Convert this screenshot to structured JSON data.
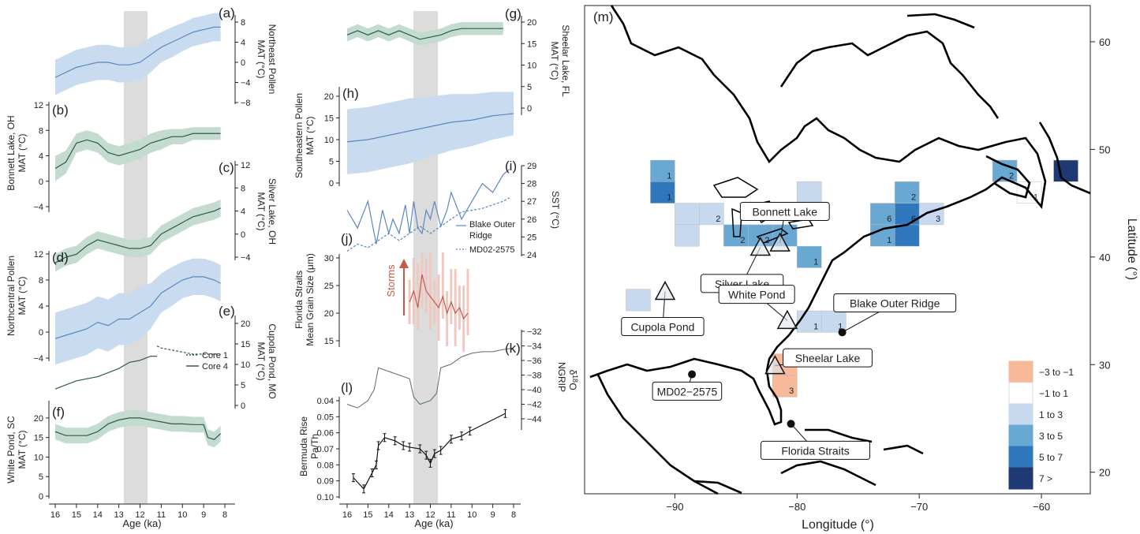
{
  "colors": {
    "blue": "#5b86c0",
    "blue_band": "#c9dcef",
    "green": "#2f5a48",
    "green_band": "#c3dccf",
    "red": "#c45a4a",
    "red_band": "#f0c8c2",
    "gray_band": "#dcdcdc",
    "ngrip": "#55705f",
    "black": "#111111"
  },
  "left_axis": {
    "xlabel": "Age (ka)",
    "ticks": [
      "16",
      "15",
      "14",
      "13",
      "12",
      "11",
      "10",
      "9",
      "8"
    ]
  },
  "mid_axis": {
    "xlabel": "Age (ka)",
    "ticks": [
      "16",
      "15",
      "14",
      "13",
      "12",
      "11",
      "10",
      "9",
      "8"
    ]
  },
  "panels": {
    "a": {
      "tag": "(a)",
      "label1": "Northeast Pollen",
      "label2": "MAT (°C)",
      "ticks": [
        "8",
        "4",
        "0",
        "−4",
        "−8"
      ]
    },
    "b": {
      "tag": "(b)",
      "label1": "Bonnett Lake, OH",
      "label2": "MAT (°C)",
      "ticks": [
        "12",
        "8",
        "4",
        "0",
        "−4"
      ]
    },
    "c": {
      "tag": "(c)",
      "label1": "Silver Lake, OH",
      "label2": "MAT (°C)",
      "ticks": [
        "12",
        "8",
        "4",
        "0",
        "−4"
      ]
    },
    "d": {
      "tag": "(d)",
      "label1": "Northcentral Pollen",
      "label2": "MAT (°C)",
      "ticks": [
        "12",
        "8",
        "4",
        "0",
        "−4"
      ]
    },
    "e": {
      "tag": "(e)",
      "label1": "Cupola Pond, MO",
      "label2": "MAT (°C)",
      "ticks": [
        "20",
        "15",
        "10",
        "5",
        "0"
      ],
      "legend": [
        "Core 1",
        "Core 4"
      ]
    },
    "f": {
      "tag": "(f)",
      "label1": "White Pond, SC",
      "label2": "MAT (°C)",
      "ticks": [
        "20",
        "15",
        "10",
        "5",
        "0"
      ]
    },
    "g": {
      "tag": "(g)",
      "label1": "Sheelar Lake, FL",
      "label2": "MAT (°C)",
      "ticks": [
        "20",
        "15",
        "10",
        "5",
        "0"
      ]
    },
    "h": {
      "tag": "(h)",
      "label1": "Southeastern Pollen",
      "label2": "MAT (°C)",
      "ticks": [
        "20",
        "15",
        "10",
        "5",
        "0"
      ]
    },
    "i": {
      "tag": "(i)",
      "label1": "SST (°C)",
      "ticks": [
        "29",
        "28",
        "27",
        "26",
        "25",
        "24"
      ],
      "legend": [
        "Blake Outer",
        "Ridge",
        "MD02-2575"
      ]
    },
    "j": {
      "tag": "(j)",
      "label1": "Florida Straits",
      "label2": "Mean Grain Size (μm)",
      "ticks": [
        "30",
        "25",
        "20",
        "15"
      ],
      "arrow": "Storms"
    },
    "k": {
      "tag": "(k)",
      "label1": "NGRIP",
      "label2": "δ",
      "label3": "18",
      "label4": "O",
      "ticks": [
        "−32",
        "−34",
        "−36",
        "−38",
        "−40",
        "−42",
        "−44"
      ]
    },
    "l": {
      "tag": "(l)",
      "label1": "Bermuda Rise",
      "label2": "Pa/Th",
      "ticks": [
        "0.04",
        "0.05",
        "0.06",
        "0.07",
        "0.08",
        "0.09",
        "0.10"
      ]
    }
  },
  "map": {
    "tag": "(m)",
    "xlabel": "Longitude (°)",
    "ylabel": "Latitude (°)",
    "xticks": [
      "−90",
      "−80",
      "−70",
      "−60"
    ],
    "yticks": [
      "60",
      "50",
      "40",
      "30",
      "20"
    ],
    "sites": [
      "Bonnett Lake",
      "Silver Lake",
      "White Pond",
      "Cupola Pond",
      "Sheelar Lake",
      "Blake Outer Ridge",
      "MD02−2575",
      "Florida Straits"
    ],
    "legend": [
      "−3 to −1",
      "−1 to 1",
      "1 to 3",
      "3 to 5",
      "5 to 7",
      "7 >"
    ],
    "legend_colors": [
      "#f7b99a",
      "#ffffff",
      "#c7d9ee",
      "#6aa8d4",
      "#2f78bd",
      "#1f3a72"
    ],
    "cell_numbers": [
      "1",
      "1",
      "2",
      "2",
      "2",
      "1",
      "1",
      "6",
      "6",
      "3",
      "1",
      "2",
      "2",
      "1",
      "1",
      "1",
      "3",
      "1"
    ]
  },
  "chart_data": [
    {
      "type": "line",
      "panel": "a",
      "title": "",
      "xlabel": "Age (ka)",
      "ylabel": "Northeast Pollen MAT (°C)",
      "xlim": [
        16,
        8
      ],
      "ylim": [
        -8,
        8
      ],
      "x": [
        16,
        15.5,
        15,
        14.5,
        14,
        13.5,
        13,
        12.5,
        12,
        11.5,
        11,
        10.5,
        10,
        9.5,
        9,
        8.5,
        8.2
      ],
      "series": [
        {
          "values": [
            -3,
            -2,
            -1,
            -0.5,
            0,
            0,
            -0.5,
            -0.5,
            0,
            1.5,
            3,
            4,
            5,
            6,
            6.5,
            7,
            7
          ],
          "band": [
            3.5,
            3.5,
            3.5,
            3.5,
            3.5,
            3.5,
            3.5,
            3.5,
            3.5,
            3.5,
            3,
            3,
            2.8,
            2.8,
            2.8,
            2.8,
            2.8
          ]
        }
      ]
    },
    {
      "type": "line",
      "panel": "b",
      "xlabel": "Age (ka)",
      "ylabel": "Bonnett Lake, OH MAT (°C)",
      "xlim": [
        16,
        8
      ],
      "ylim": [
        -4,
        12
      ],
      "x": [
        16,
        15.5,
        15,
        14.5,
        14,
        13.5,
        13,
        12.5,
        12,
        11.5,
        11,
        10.5,
        10,
        9.5,
        9,
        8.5,
        8.2
      ],
      "series": [
        {
          "values": [
            2,
            3,
            6,
            6.5,
            6,
            4.5,
            4,
            4.5,
            5,
            6,
            6.5,
            7,
            7,
            7.5,
            7.5,
            7.5,
            7.5
          ],
          "band": [
            2,
            1.8,
            1.5,
            1.5,
            1.5,
            1.5,
            1.5,
            1.5,
            1.5,
            1.5,
            1.5,
            1.2,
            1.2,
            1,
            1,
            1,
            1
          ]
        }
      ]
    },
    {
      "type": "line",
      "panel": "c",
      "xlabel": "Age (ka)",
      "ylabel": "Silver Lake, OH MAT (°C)",
      "xlim": [
        16,
        8
      ],
      "ylim": [
        -4,
        12
      ],
      "x": [
        16,
        15.5,
        15,
        14.5,
        14,
        13.5,
        13,
        12.5,
        12,
        11.5,
        11,
        10.5,
        10,
        9.5,
        9,
        8.5,
        8.2
      ],
      "series": [
        {
          "values": [
            -5,
            -4,
            -3.5,
            -2,
            -1,
            -1.5,
            -2,
            -2.5,
            -2.5,
            -2,
            0,
            1,
            2,
            3,
            3.5,
            4,
            4.5
          ],
          "band": [
            1.5,
            1.5,
            1.5,
            1.5,
            1.5,
            1.5,
            1.5,
            1.5,
            1.5,
            1.5,
            1.5,
            1.5,
            1.5,
            1.5,
            1.5,
            1.5,
            1.5
          ]
        }
      ]
    },
    {
      "type": "line",
      "panel": "d",
      "xlabel": "Age (ka)",
      "ylabel": "Northcentral Pollen MAT (°C)",
      "xlim": [
        16,
        8
      ],
      "ylim": [
        -4,
        12
      ],
      "x": [
        16,
        15.5,
        15,
        14.5,
        14,
        13.5,
        13,
        12.5,
        12,
        11.5,
        11,
        10.5,
        10,
        9.5,
        9,
        8.5,
        8.2
      ],
      "series": [
        {
          "values": [
            -1,
            -0.5,
            0,
            0.5,
            1.5,
            1,
            2,
            2,
            3,
            4,
            6,
            7,
            8,
            8.5,
            8.5,
            8,
            7.5
          ],
          "band": [
            4,
            4,
            4,
            4,
            4,
            4,
            4,
            4,
            4,
            3.5,
            3,
            3,
            2.8,
            2.8,
            2.8,
            2.8,
            2.8
          ]
        }
      ]
    },
    {
      "type": "line",
      "panel": "e",
      "xlabel": "Age (ka)",
      "ylabel": "Cupola Pond, MO MAT (°C)",
      "xlim": [
        16,
        8
      ],
      "ylim": [
        0,
        20
      ],
      "x": [
        16,
        15,
        14.5,
        14,
        13.5,
        13,
        12.5,
        12,
        11.5,
        11.2
      ],
      "series": [
        {
          "name": "Core 4",
          "values": [
            4,
            6,
            6.5,
            7,
            8,
            9,
            10.5,
            11,
            12,
            12
          ]
        },
        {
          "name": "Core 1",
          "x": [
            11.2,
            11,
            10.5,
            10,
            9.5,
            9,
            8.5,
            8.2
          ],
          "values": [
            14.5,
            14,
            13.5,
            13,
            12.5,
            12.5,
            12.5,
            12.5
          ]
        }
      ]
    },
    {
      "type": "line",
      "panel": "f",
      "xlabel": "Age (ka)",
      "ylabel": "White Pond, SC MAT (°C)",
      "xlim": [
        16,
        8
      ],
      "ylim": [
        0,
        22
      ],
      "x": [
        16,
        15.5,
        15,
        14.5,
        14,
        13.5,
        13,
        12.5,
        12,
        11.5,
        11,
        10.5,
        10,
        9.5,
        9,
        8.8,
        8.5,
        8.2
      ],
      "series": [
        {
          "values": [
            16.5,
            15.5,
            15.5,
            15.5,
            16.5,
            18.5,
            19.5,
            20,
            20,
            19.5,
            19,
            18.5,
            18.5,
            18.3,
            18.3,
            15,
            14.5,
            16
          ],
          "band": [
            2,
            2,
            2,
            2,
            2,
            2,
            2,
            2,
            2,
            2,
            2,
            2,
            2,
            2,
            2,
            2,
            2,
            2
          ]
        }
      ]
    },
    {
      "type": "line",
      "panel": "g",
      "xlabel": "Age (ka)",
      "ylabel": "Sheelar Lake, FL MAT (°C)",
      "xlim": [
        16,
        8
      ],
      "ylim": [
        0,
        22
      ],
      "x": [
        16,
        15.5,
        15,
        14.5,
        14,
        13.5,
        13,
        12.5,
        12,
        11.5,
        11,
        10.5,
        10,
        9.5,
        9,
        8.5
      ],
      "series": [
        {
          "values": [
            17,
            18,
            17,
            18,
            17,
            18,
            17,
            16,
            16.5,
            17,
            18,
            18.5,
            18.5,
            18.5,
            18.5,
            18.5
          ],
          "band": [
            1.5,
            1.5,
            1.5,
            1.5,
            1.5,
            1.5,
            1.5,
            1.5,
            1.5,
            1.5,
            1.5,
            1.5,
            1.5,
            1.5,
            1.5,
            1.5
          ]
        }
      ]
    },
    {
      "type": "line",
      "panel": "h",
      "xlabel": "Age (ka)",
      "ylabel": "Southeastern Pollen MAT (°C)",
      "xlim": [
        16,
        8
      ],
      "ylim": [
        0,
        22
      ],
      "x": [
        16,
        15,
        14,
        13,
        12,
        11,
        10,
        9,
        8
      ],
      "series": [
        {
          "values": [
            9.5,
            10,
            11,
            12,
            13,
            14,
            14.5,
            15.5,
            16
          ],
          "band": [
            7.5,
            7.5,
            7.5,
            7.5,
            7,
            6.5,
            6,
            5.5,
            5
          ]
        }
      ]
    },
    {
      "type": "line",
      "panel": "i",
      "xlabel": "Age (ka)",
      "ylabel": "SST (°C)",
      "xlim": [
        16,
        8
      ],
      "ylim": [
        24,
        29
      ],
      "series": [
        {
          "name": "Blake Outer Ridge",
          "x": [
            16,
            15.5,
            15,
            14.6,
            14.3,
            14,
            13.8,
            13.5,
            13.2,
            13,
            12.8,
            12.6,
            12.4,
            12.2,
            12,
            11.8,
            11.5,
            11.2,
            11,
            10.5,
            10,
            9.5,
            9,
            8.5,
            8.2
          ],
          "values": [
            26.5,
            25.5,
            27,
            24.6,
            26.5,
            25.2,
            26,
            25.2,
            26.8,
            25.2,
            27,
            25.5,
            25.2,
            26.5,
            26,
            27,
            25.6,
            26.5,
            27.5,
            26,
            27,
            28,
            27.5,
            28.5,
            28.8
          ]
        },
        {
          "name": "MD02-2575",
          "x": [
            16,
            15.5,
            15,
            14.5,
            14,
            13.5,
            13,
            12.5,
            12,
            11.5,
            11,
            10.5,
            10,
            9.5,
            9,
            8.5,
            8.2
          ],
          "values": [
            24.2,
            24.6,
            24.4,
            24.8,
            25.2,
            24.8,
            25.2,
            25.6,
            25.2,
            25.6,
            26,
            26.4,
            26.5,
            26.6,
            26.8,
            27,
            27.2
          ]
        }
      ]
    },
    {
      "type": "line",
      "panel": "j",
      "xlabel": "Age (ka)",
      "ylabel": "Florida Straits Mean Grain Size (μm)",
      "xlim": [
        16,
        8
      ],
      "ylim": [
        13,
        32
      ],
      "x": [
        13,
        12.8,
        12.6,
        12.4,
        12.2,
        12,
        11.8,
        11.6,
        11.4,
        11.2,
        11,
        10.8,
        10.6,
        10.4,
        10.2
      ],
      "series": [
        {
          "values": [
            22,
            24,
            21,
            27,
            24,
            23,
            22,
            21,
            23,
            20,
            22,
            20,
            21,
            19,
            20
          ]
        }
      ]
    },
    {
      "type": "line",
      "panel": "k",
      "xlabel": "Age (ka)",
      "ylabel": "NGRIP δ18O",
      "xlim": [
        16,
        8
      ],
      "ylim": [
        -44,
        -32
      ],
      "x": [
        16,
        15.5,
        15,
        14.7,
        14.5,
        14,
        13.5,
        13,
        12.8,
        12.5,
        12,
        11.7,
        11.5,
        11,
        10.5,
        10,
        9.5,
        9,
        8.5,
        8
      ],
      "series": [
        {
          "values": [
            -42,
            -42.5,
            -41.5,
            -40,
            -37,
            -37.5,
            -38,
            -38.5,
            -41,
            -42,
            -41.5,
            -40.5,
            -37,
            -36.5,
            -35.5,
            -35,
            -34.8,
            -34.8,
            -34.5,
            -34.3
          ]
        }
      ]
    },
    {
      "type": "line",
      "panel": "l",
      "xlabel": "Age (ka)",
      "ylabel": "Bermuda Rise Pa/Th",
      "xlim": [
        16,
        8
      ],
      "ylim": [
        0.1,
        0.04
      ],
      "x": [
        15.7,
        15.2,
        14.8,
        14.6,
        14.5,
        14.2,
        13.7,
        13.3,
        13,
        12.5,
        12.2,
        12,
        11.8,
        11.5,
        11,
        10.5,
        10.1,
        8.4
      ],
      "series": [
        {
          "values": [
            0.088,
            0.095,
            0.085,
            0.08,
            0.068,
            0.063,
            0.065,
            0.068,
            0.069,
            0.07,
            0.074,
            0.079,
            0.073,
            0.071,
            0.064,
            0.062,
            0.059,
            0.048
          ]
        }
      ]
    }
  ]
}
